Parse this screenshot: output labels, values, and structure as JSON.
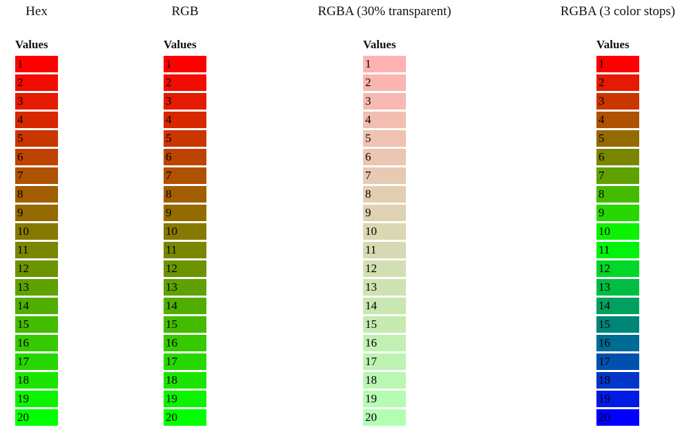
{
  "groups": [
    {
      "title": "Hex",
      "values_header": "Values",
      "cells": [
        {
          "value": "1",
          "color": "#FF0000"
        },
        {
          "value": "2",
          "color": "#F20D00"
        },
        {
          "value": "3",
          "color": "#E41B00"
        },
        {
          "value": "4",
          "color": "#D72800"
        },
        {
          "value": "5",
          "color": "#C93600"
        },
        {
          "value": "6",
          "color": "#BC4300"
        },
        {
          "value": "7",
          "color": "#AE5100"
        },
        {
          "value": "8",
          "color": "#A15E00"
        },
        {
          "value": "9",
          "color": "#946B00"
        },
        {
          "value": "10",
          "color": "#867900"
        },
        {
          "value": "11",
          "color": "#798600"
        },
        {
          "value": "12",
          "color": "#6B9400"
        },
        {
          "value": "13",
          "color": "#5EA100"
        },
        {
          "value": "14",
          "color": "#51AE00"
        },
        {
          "value": "15",
          "color": "#43BC00"
        },
        {
          "value": "16",
          "color": "#36C900"
        },
        {
          "value": "17",
          "color": "#28D700"
        },
        {
          "value": "18",
          "color": "#1BE400"
        },
        {
          "value": "19",
          "color": "#0DF200"
        },
        {
          "value": "20",
          "color": "#00FF00"
        }
      ]
    },
    {
      "title": "RGB",
      "values_header": "Values",
      "cells": [
        {
          "value": "1",
          "color": "#FF0000"
        },
        {
          "value": "2",
          "color": "#F20D00"
        },
        {
          "value": "3",
          "color": "#E41B00"
        },
        {
          "value": "4",
          "color": "#D72800"
        },
        {
          "value": "5",
          "color": "#C93600"
        },
        {
          "value": "6",
          "color": "#BC4300"
        },
        {
          "value": "7",
          "color": "#AE5100"
        },
        {
          "value": "8",
          "color": "#A15E00"
        },
        {
          "value": "9",
          "color": "#946B00"
        },
        {
          "value": "10",
          "color": "#867900"
        },
        {
          "value": "11",
          "color": "#798600"
        },
        {
          "value": "12",
          "color": "#6B9400"
        },
        {
          "value": "13",
          "color": "#5EA100"
        },
        {
          "value": "14",
          "color": "#51AE00"
        },
        {
          "value": "15",
          "color": "#43BC00"
        },
        {
          "value": "16",
          "color": "#36C900"
        },
        {
          "value": "17",
          "color": "#28D700"
        },
        {
          "value": "18",
          "color": "#1BE400"
        },
        {
          "value": "19",
          "color": "#0DF200"
        },
        {
          "value": "20",
          "color": "#00FF00"
        }
      ]
    },
    {
      "title": "RGBA (30% transparent)",
      "values_header": "Values",
      "cells": [
        {
          "value": "1",
          "color": "rgba(255,0,0,0.3)"
        },
        {
          "value": "2",
          "color": "rgba(242,13,0,0.3)"
        },
        {
          "value": "3",
          "color": "rgba(228,27,0,0.3)"
        },
        {
          "value": "4",
          "color": "rgba(215,40,0,0.3)"
        },
        {
          "value": "5",
          "color": "rgba(201,54,0,0.3)"
        },
        {
          "value": "6",
          "color": "rgba(188,67,0,0.3)"
        },
        {
          "value": "7",
          "color": "rgba(174,81,0,0.3)"
        },
        {
          "value": "8",
          "color": "rgba(161,94,0,0.3)"
        },
        {
          "value": "9",
          "color": "rgba(148,107,0,0.3)"
        },
        {
          "value": "10",
          "color": "rgba(134,121,0,0.3)"
        },
        {
          "value": "11",
          "color": "rgba(121,134,0,0.3)"
        },
        {
          "value": "12",
          "color": "rgba(107,148,0,0.3)"
        },
        {
          "value": "13",
          "color": "rgba(94,161,0,0.3)"
        },
        {
          "value": "14",
          "color": "rgba(81,174,0,0.3)"
        },
        {
          "value": "15",
          "color": "rgba(67,188,0,0.3)"
        },
        {
          "value": "16",
          "color": "rgba(54,201,0,0.3)"
        },
        {
          "value": "17",
          "color": "rgba(40,215,0,0.3)"
        },
        {
          "value": "18",
          "color": "rgba(27,228,0,0.3)"
        },
        {
          "value": "19",
          "color": "rgba(13,242,0,0.3)"
        },
        {
          "value": "20",
          "color": "rgba(0,255,0,0.3)"
        }
      ]
    },
    {
      "title": "RGBA (3 color stops)",
      "values_header": "Values",
      "cells": [
        {
          "value": "1",
          "color": "#FF0000"
        },
        {
          "value": "2",
          "color": "#E41B00"
        },
        {
          "value": "3",
          "color": "#C93600"
        },
        {
          "value": "4",
          "color": "#AE5100"
        },
        {
          "value": "5",
          "color": "#946B00"
        },
        {
          "value": "6",
          "color": "#798600"
        },
        {
          "value": "7",
          "color": "#5EA100"
        },
        {
          "value": "8",
          "color": "#43BC00"
        },
        {
          "value": "9",
          "color": "#28D700"
        },
        {
          "value": "10",
          "color": "#0DF200"
        },
        {
          "value": "11",
          "color": "#00F20D"
        },
        {
          "value": "12",
          "color": "#00D728"
        },
        {
          "value": "13",
          "color": "#00BC43"
        },
        {
          "value": "14",
          "color": "#00A15E"
        },
        {
          "value": "15",
          "color": "#008679"
        },
        {
          "value": "16",
          "color": "#006B94"
        },
        {
          "value": "17",
          "color": "#0051AE"
        },
        {
          "value": "18",
          "color": "#0036C9"
        },
        {
          "value": "19",
          "color": "#001BE4"
        },
        {
          "value": "20",
          "color": "#0000FF"
        }
      ]
    }
  ]
}
